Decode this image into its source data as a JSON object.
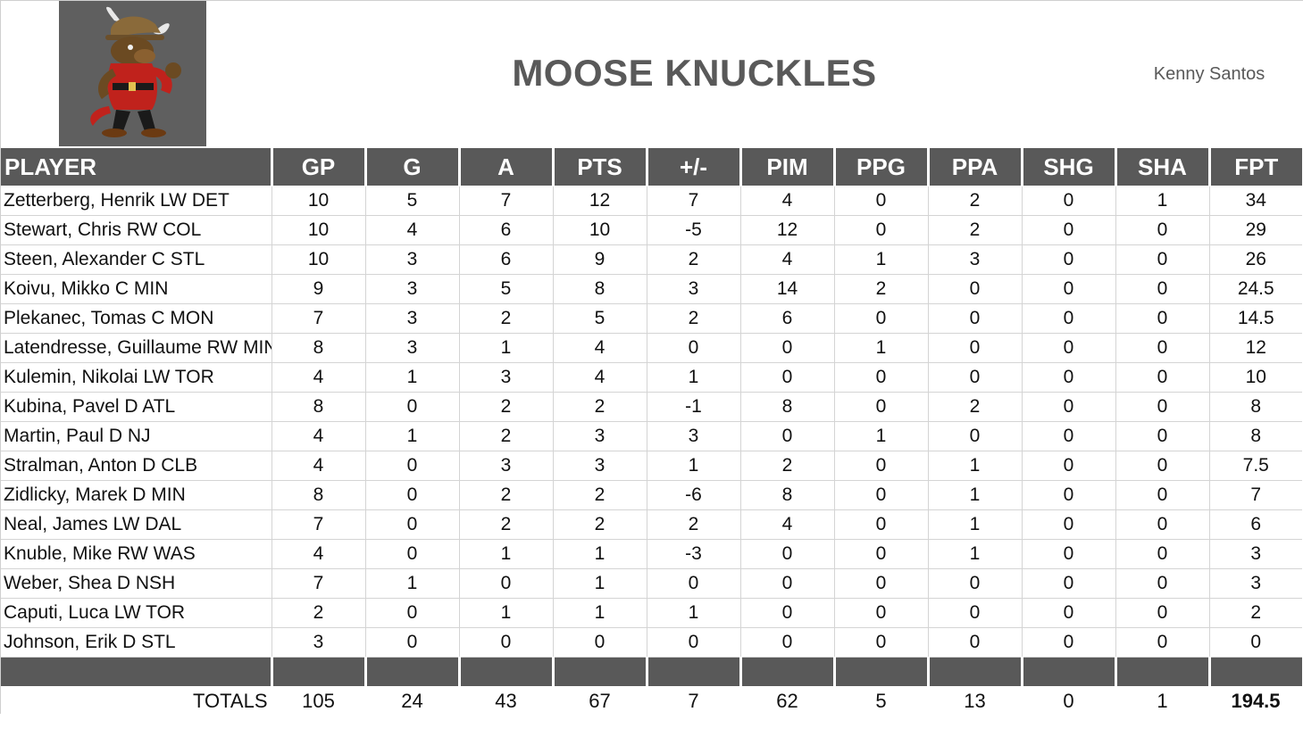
{
  "header": {
    "team_name": "MOOSE KNUCKLES",
    "owner": "Kenny Santos",
    "logo_icon": "moose-mascot-logo"
  },
  "columns": [
    "PLAYER",
    "GP",
    "G",
    "A",
    "PTS",
    "+/-",
    "PIM",
    "PPG",
    "PPA",
    "SHG",
    "SHA",
    "FPT"
  ],
  "rows": [
    {
      "player": "Zetterberg, Henrik LW DET",
      "gp": "10",
      "g": "5",
      "a": "7",
      "pts": "12",
      "pm": "7",
      "pim": "4",
      "ppg": "0",
      "ppa": "2",
      "shg": "0",
      "sha": "1",
      "fpt": "34"
    },
    {
      "player": "Stewart, Chris RW COL",
      "gp": "10",
      "g": "4",
      "a": "6",
      "pts": "10",
      "pm": "-5",
      "pim": "12",
      "ppg": "0",
      "ppa": "2",
      "shg": "0",
      "sha": "0",
      "fpt": "29"
    },
    {
      "player": "Steen, Alexander C STL",
      "gp": "10",
      "g": "3",
      "a": "6",
      "pts": "9",
      "pm": "2",
      "pim": "4",
      "ppg": "1",
      "ppa": "3",
      "shg": "0",
      "sha": "0",
      "fpt": "26"
    },
    {
      "player": "Koivu, Mikko C MIN",
      "gp": "9",
      "g": "3",
      "a": "5",
      "pts": "8",
      "pm": "3",
      "pim": "14",
      "ppg": "2",
      "ppa": "0",
      "shg": "0",
      "sha": "0",
      "fpt": "24.5"
    },
    {
      "player": "Plekanec, Tomas C MON",
      "gp": "7",
      "g": "3",
      "a": "2",
      "pts": "5",
      "pm": "2",
      "pim": "6",
      "ppg": "0",
      "ppa": "0",
      "shg": "0",
      "sha": "0",
      "fpt": "14.5"
    },
    {
      "player": "Latendresse, Guillaume RW MIN",
      "gp": "8",
      "g": "3",
      "a": "1",
      "pts": "4",
      "pm": "0",
      "pim": "0",
      "ppg": "1",
      "ppa": "0",
      "shg": "0",
      "sha": "0",
      "fpt": "12"
    },
    {
      "player": "Kulemin, Nikolai LW TOR",
      "gp": "4",
      "g": "1",
      "a": "3",
      "pts": "4",
      "pm": "1",
      "pim": "0",
      "ppg": "0",
      "ppa": "0",
      "shg": "0",
      "sha": "0",
      "fpt": "10"
    },
    {
      "player": "Kubina, Pavel D ATL",
      "gp": "8",
      "g": "0",
      "a": "2",
      "pts": "2",
      "pm": "-1",
      "pim": "8",
      "ppg": "0",
      "ppa": "2",
      "shg": "0",
      "sha": "0",
      "fpt": "8"
    },
    {
      "player": "Martin, Paul D NJ",
      "gp": "4",
      "g": "1",
      "a": "2",
      "pts": "3",
      "pm": "3",
      "pim": "0",
      "ppg": "1",
      "ppa": "0",
      "shg": "0",
      "sha": "0",
      "fpt": "8"
    },
    {
      "player": "Stralman, Anton D CLB",
      "gp": "4",
      "g": "0",
      "a": "3",
      "pts": "3",
      "pm": "1",
      "pim": "2",
      "ppg": "0",
      "ppa": "1",
      "shg": "0",
      "sha": "0",
      "fpt": "7.5"
    },
    {
      "player": "Zidlicky, Marek D MIN",
      "gp": "8",
      "g": "0",
      "a": "2",
      "pts": "2",
      "pm": "-6",
      "pim": "8",
      "ppg": "0",
      "ppa": "1",
      "shg": "0",
      "sha": "0",
      "fpt": "7"
    },
    {
      "player": "Neal, James LW DAL",
      "gp": "7",
      "g": "0",
      "a": "2",
      "pts": "2",
      "pm": "2",
      "pim": "4",
      "ppg": "0",
      "ppa": "1",
      "shg": "0",
      "sha": "0",
      "fpt": "6"
    },
    {
      "player": "Knuble, Mike RW WAS",
      "gp": "4",
      "g": "0",
      "a": "1",
      "pts": "1",
      "pm": "-3",
      "pim": "0",
      "ppg": "0",
      "ppa": "1",
      "shg": "0",
      "sha": "0",
      "fpt": "3"
    },
    {
      "player": "Weber, Shea D NSH",
      "gp": "7",
      "g": "1",
      "a": "0",
      "pts": "1",
      "pm": "0",
      "pim": "0",
      "ppg": "0",
      "ppa": "0",
      "shg": "0",
      "sha": "0",
      "fpt": "3"
    },
    {
      "player": "Caputi, Luca LW TOR",
      "gp": "2",
      "g": "0",
      "a": "1",
      "pts": "1",
      "pm": "1",
      "pim": "0",
      "ppg": "0",
      "ppa": "0",
      "shg": "0",
      "sha": "0",
      "fpt": "2"
    },
    {
      "player": "Johnson, Erik D STL",
      "gp": "3",
      "g": "0",
      "a": "0",
      "pts": "0",
      "pm": "0",
      "pim": "0",
      "ppg": "0",
      "ppa": "0",
      "shg": "0",
      "sha": "0",
      "fpt": "0"
    }
  ],
  "totals": {
    "label": "TOTALS",
    "gp": "105",
    "g": "24",
    "a": "43",
    "pts": "67",
    "pm": "7",
    "pim": "62",
    "ppg": "5",
    "ppa": "13",
    "shg": "0",
    "sha": "1",
    "fpt": "194.5"
  },
  "colors": {
    "header_bg": "#595959",
    "header_text": "#ffffff",
    "title_text": "#595959",
    "logo_bg": "#5f5f5f"
  }
}
